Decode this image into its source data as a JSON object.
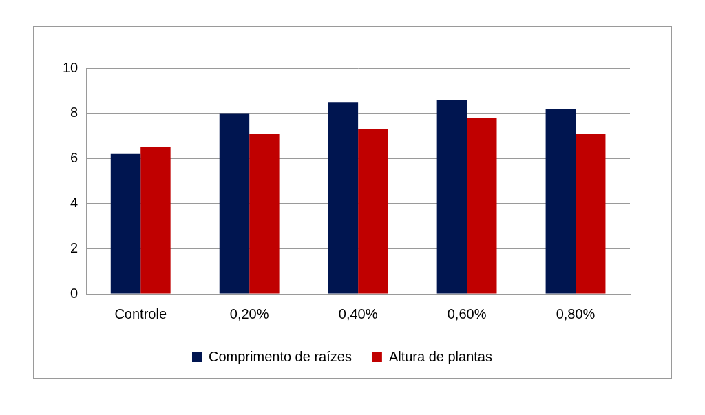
{
  "chart_data": {
    "type": "bar",
    "categories": [
      "Controle",
      "0,20%",
      "0,40%",
      "0,60%",
      "0,80%"
    ],
    "series": [
      {
        "name": "Comprimento de raízes",
        "color": "#001550",
        "values": [
          6.2,
          8.0,
          8.5,
          8.6,
          8.2
        ]
      },
      {
        "name": "Altura de plantas",
        "color": "#c00000",
        "values": [
          6.5,
          7.1,
          7.3,
          7.8,
          7.1
        ]
      }
    ],
    "ylim": [
      0,
      10
    ],
    "yticks": [
      0,
      2,
      4,
      6,
      8,
      10
    ],
    "grid": true,
    "legend": "bottom"
  }
}
